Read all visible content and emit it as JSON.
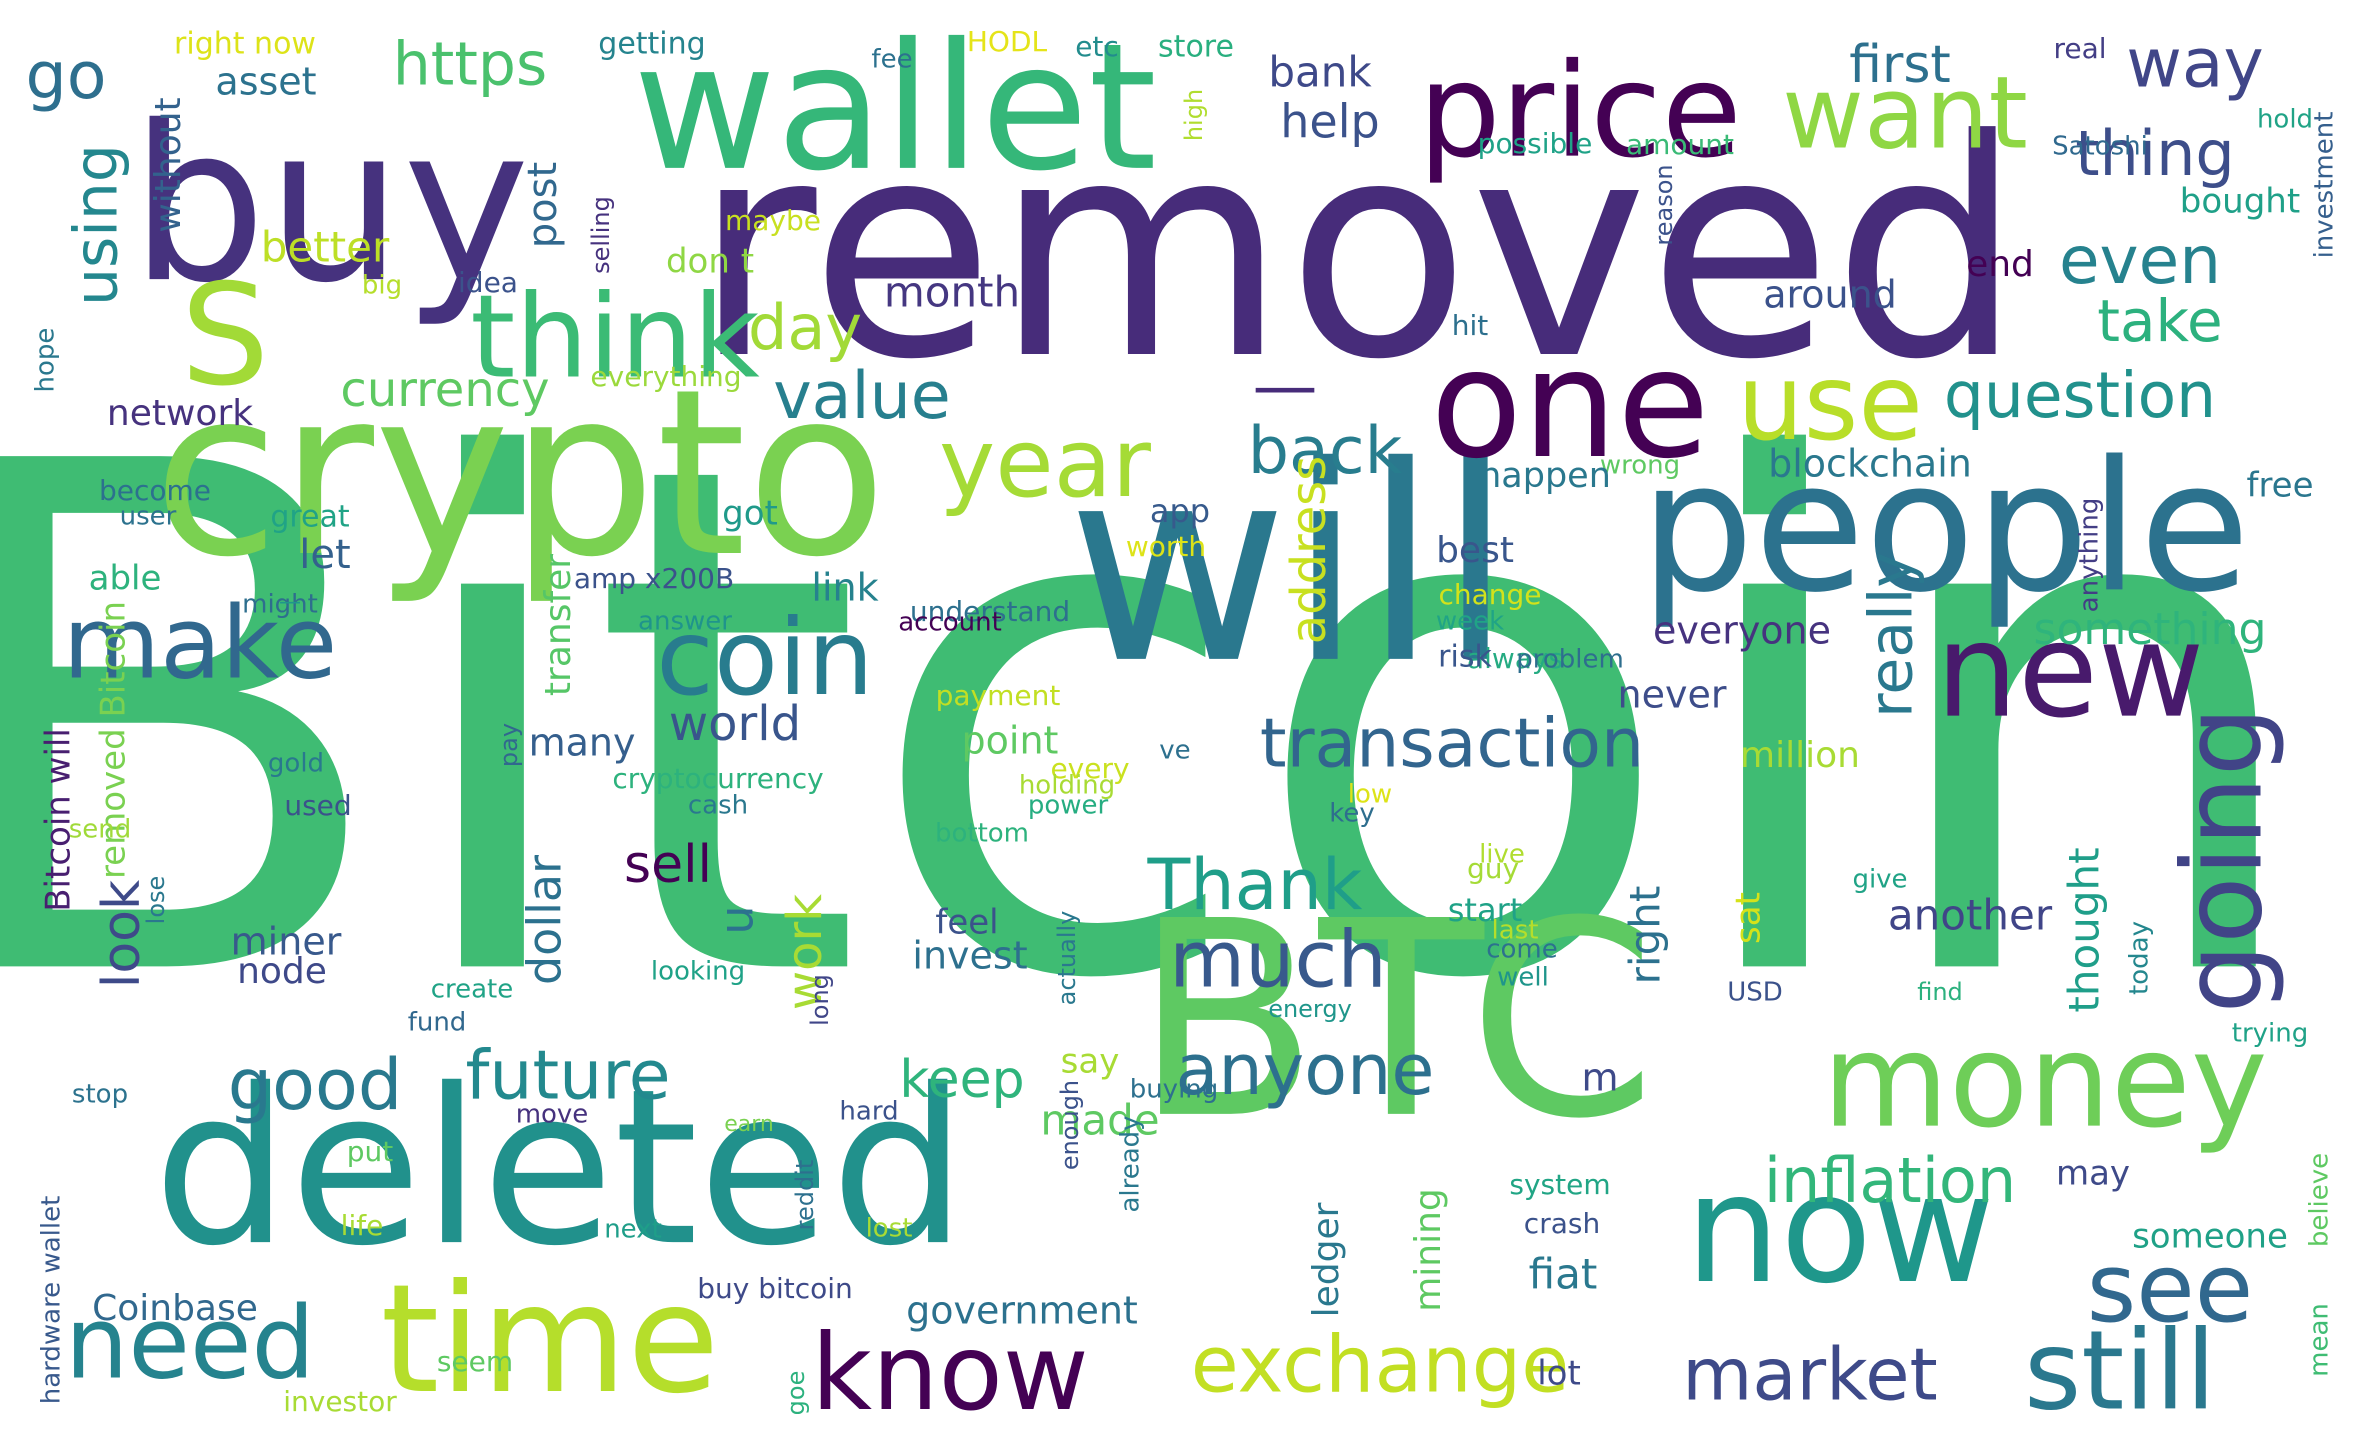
{
  "word_cloud": {
    "words": [
      {
        "text": "Bitcoin",
        "color": "#3fbc73"
      },
      {
        "text": "removed",
        "color": "#472c7a"
      },
      {
        "text": "will",
        "color": "#2a788e"
      },
      {
        "text": "crypto",
        "color": "#7ad151"
      },
      {
        "text": "BTC",
        "color": "#5ec962"
      },
      {
        "text": "deleted",
        "color": "#21918c"
      },
      {
        "text": "people",
        "color": "#2c728e"
      },
      {
        "text": "buy",
        "color": "#46327e"
      },
      {
        "text": "wallet",
        "color": "#35b779"
      },
      {
        "text": "money",
        "color": "#6ece58"
      },
      {
        "text": "now",
        "color": "#1f978b"
      },
      {
        "text": "time",
        "color": "#b5de2b"
      },
      {
        "text": "price",
        "color": "#440154"
      },
      {
        "text": "think",
        "color": "#3bbb75"
      },
      {
        "text": "one",
        "color": "#440154"
      },
      {
        "text": "new",
        "color": "#481a6c"
      },
      {
        "text": "S",
        "color": "#a2da37"
      },
      {
        "text": "coin",
        "color": "#287c8e"
      },
      {
        "text": "know",
        "color": "#440154"
      },
      {
        "text": "still",
        "color": "#2a788e"
      },
      {
        "text": "see",
        "color": "#31688e"
      },
      {
        "text": "need",
        "color": "#25838e"
      },
      {
        "text": "make",
        "color": "#31688e"
      },
      {
        "text": "going",
        "color": "#414487"
      },
      {
        "text": "year",
        "color": "#a5db36"
      },
      {
        "text": "want",
        "color": "#8fd744"
      },
      {
        "text": "use",
        "color": "#b8de29"
      },
      {
        "text": "exchange",
        "color": "#c2df23"
      },
      {
        "text": "market",
        "color": "#3e4a89"
      },
      {
        "text": "transaction",
        "color": "#32658e"
      },
      {
        "text": "anyone",
        "color": "#2d708e"
      },
      {
        "text": "much",
        "color": "#38598c"
      },
      {
        "text": "Thank",
        "color": "#1f9e89"
      },
      {
        "text": "future",
        "color": "#23898e"
      },
      {
        "text": "good",
        "color": "#29798e"
      },
      {
        "text": "inflation",
        "color": "#32b67a"
      },
      {
        "text": "question",
        "color": "#21918c"
      },
      {
        "text": "value",
        "color": "#277f8e"
      },
      {
        "text": "back",
        "color": "#287d8e"
      },
      {
        "text": "day",
        "color": "#a2da37"
      },
      {
        "text": "way",
        "color": "#404688"
      },
      {
        "text": "thing",
        "color": "#3d4e8a"
      },
      {
        "text": "even",
        "color": "#26828e"
      },
      {
        "text": "take",
        "color": "#2cb17e"
      },
      {
        "text": "first",
        "color": "#2d708e"
      },
      {
        "text": "https",
        "color": "#4ac16d"
      },
      {
        "text": "go",
        "color": "#2e6f8e"
      },
      {
        "text": "using",
        "color": "#24878e"
      },
      {
        "text": "currency",
        "color": "#5ec962"
      },
      {
        "text": "better",
        "color": "#bddf26"
      },
      {
        "text": "help",
        "color": "#3b528b"
      },
      {
        "text": "bank",
        "color": "#3e4989"
      },
      {
        "text": "month",
        "color": "#453781"
      },
      {
        "text": "asset",
        "color": "#2c728e"
      },
      {
        "text": "without",
        "color": "#33628d"
      },
      {
        "text": "post",
        "color": "#31688e"
      },
      {
        "text": "don t",
        "color": "#8fd744"
      },
      {
        "text": "idea",
        "color": "#3b528b"
      },
      {
        "text": "big",
        "color": "#b5de2b"
      },
      {
        "text": "selling",
        "color": "#46327e"
      },
      {
        "text": "getting",
        "color": "#25848e"
      },
      {
        "text": "right now",
        "color": "#dde318"
      },
      {
        "text": "fee",
        "color": "#2c718e"
      },
      {
        "text": "HODL",
        "color": "#e5e419"
      },
      {
        "text": "etc",
        "color": "#228c8d"
      },
      {
        "text": "store",
        "color": "#29af7f"
      },
      {
        "text": "high",
        "color": "#b0dd2f"
      },
      {
        "text": "maybe",
        "color": "#c8e020"
      },
      {
        "text": "possible",
        "color": "#1fa287"
      },
      {
        "text": "amount",
        "color": "#3aba76"
      },
      {
        "text": "reason",
        "color": "#3b528b"
      },
      {
        "text": "Satoshi",
        "color": "#30698e"
      },
      {
        "text": "hold",
        "color": "#20a386"
      },
      {
        "text": "investment",
        "color": "#355f8d"
      },
      {
        "text": "bought",
        "color": "#1fa088"
      },
      {
        "text": "real",
        "color": "#433e85"
      },
      {
        "text": "end",
        "color": "#440154"
      },
      {
        "text": "around",
        "color": "#3b528b"
      },
      {
        "text": "hit",
        "color": "#2d708e"
      },
      {
        "text": "free",
        "color": "#2a768e"
      },
      {
        "text": "blockchain",
        "color": "#2a788e"
      },
      {
        "text": "wrong",
        "color": "#5ec962"
      },
      {
        "text": "happen",
        "color": "#2a788e"
      },
      {
        "text": "something",
        "color": "#2fb47c"
      },
      {
        "text": "anything",
        "color": "#433e85"
      },
      {
        "text": "everyone",
        "color": "#46337f"
      },
      {
        "text": "never",
        "color": "#3d4d8a"
      },
      {
        "text": "really",
        "color": "#2a788e"
      },
      {
        "text": "million",
        "color": "#a8db34"
      },
      {
        "text": "best",
        "color": "#39568c"
      },
      {
        "text": "change",
        "color": "#d2e21b"
      },
      {
        "text": "week",
        "color": "#20a486"
      },
      {
        "text": "always",
        "color": "#25ab82"
      },
      {
        "text": "address",
        "color": "#c8e020"
      },
      {
        "text": "problem",
        "color": "#2e6e8e"
      },
      {
        "text": "risk",
        "color": "#39568c"
      },
      {
        "text": "network",
        "color": "#46327e"
      },
      {
        "text": "become",
        "color": "#2c718e"
      },
      {
        "text": "user",
        "color": "#2c728e"
      },
      {
        "text": "great",
        "color": "#20a386"
      },
      {
        "text": "might",
        "color": "#2e6e8e"
      },
      {
        "text": "hope",
        "color": "#2a788e"
      },
      {
        "text": "everything",
        "color": "#9bd93c"
      },
      {
        "text": "able",
        "color": "#2db27d"
      },
      {
        "text": "let",
        "color": "#34618d"
      },
      {
        "text": "got",
        "color": "#1f9a8a"
      },
      {
        "text": "app",
        "color": "#375a8c"
      },
      {
        "text": "amp x200B",
        "color": "#3b528b"
      },
      {
        "text": "link",
        "color": "#26828e"
      },
      {
        "text": "understand",
        "color": "#2d708e"
      },
      {
        "text": "worth",
        "color": "#dde318"
      },
      {
        "text": "account",
        "color": "#440154"
      },
      {
        "text": "answer",
        "color": "#1f948c"
      },
      {
        "text": "transfer",
        "color": "#56c667"
      },
      {
        "text": "pay",
        "color": "#31688e"
      },
      {
        "text": "Bitcoin will",
        "color": "#481f70"
      },
      {
        "text": "removed Bitcoin",
        "color": "#7ad151"
      },
      {
        "text": "look",
        "color": "#3e4a89"
      },
      {
        "text": "world",
        "color": "#39558c"
      },
      {
        "text": "many",
        "color": "#355f8d"
      },
      {
        "text": "point",
        "color": "#5ec962"
      },
      {
        "text": "payment",
        "color": "#c2df23"
      },
      {
        "text": "gold",
        "color": "#29798e"
      },
      {
        "text": "used",
        "color": "#3b528b"
      },
      {
        "text": "send",
        "color": "#a0da39"
      },
      {
        "text": "lose",
        "color": "#2a788e"
      },
      {
        "text": "cryptocurrency",
        "color": "#2db27d"
      },
      {
        "text": "cash",
        "color": "#2a788e"
      },
      {
        "text": "every",
        "color": "#cae11f"
      },
      {
        "text": "holding",
        "color": "#a8db34"
      },
      {
        "text": "power",
        "color": "#26ad81"
      },
      {
        "text": "ve",
        "color": "#2d708e"
      },
      {
        "text": "low",
        "color": "#dde318"
      },
      {
        "text": "key",
        "color": "#2e6e8e"
      },
      {
        "text": "sell",
        "color": "#440154"
      },
      {
        "text": "u",
        "color": "#2c728e"
      },
      {
        "text": "work",
        "color": "#a8db34"
      },
      {
        "text": "dollar",
        "color": "#2c718e"
      },
      {
        "text": "miner",
        "color": "#38598c"
      },
      {
        "text": "node",
        "color": "#3e4989"
      },
      {
        "text": "feel",
        "color": "#3b528b"
      },
      {
        "text": "invest",
        "color": "#2d708e"
      },
      {
        "text": "start",
        "color": "#1fa287"
      },
      {
        "text": "guy",
        "color": "#a5db36"
      },
      {
        "text": "come",
        "color": "#2c728e"
      },
      {
        "text": "well",
        "color": "#1f958b"
      },
      {
        "text": "live",
        "color": "#b0dd2f"
      },
      {
        "text": "last",
        "color": "#b5de2b"
      },
      {
        "text": "bottom",
        "color": "#2db27d"
      },
      {
        "text": "looking",
        "color": "#1fa287"
      },
      {
        "text": "create",
        "color": "#20a386"
      },
      {
        "text": "fund",
        "color": "#31688e"
      },
      {
        "text": "long",
        "color": "#404688"
      },
      {
        "text": "actually",
        "color": "#2a788e"
      },
      {
        "text": "energy",
        "color": "#1f968b"
      },
      {
        "text": "USD",
        "color": "#3b528b"
      },
      {
        "text": "find",
        "color": "#2cb17e"
      },
      {
        "text": "give",
        "color": "#20a386"
      },
      {
        "text": "trying",
        "color": "#1fa287"
      },
      {
        "text": "sat",
        "color": "#d5e21a"
      },
      {
        "text": "right",
        "color": "#2c718e"
      },
      {
        "text": "thought",
        "color": "#1f9e89"
      },
      {
        "text": "today",
        "color": "#24878e"
      },
      {
        "text": "another",
        "color": "#404588"
      },
      {
        "text": "keep",
        "color": "#2fb47c"
      },
      {
        "text": "say",
        "color": "#a8db34"
      },
      {
        "text": "made",
        "color": "#5ec962"
      },
      {
        "text": "m",
        "color": "#3e4a89"
      },
      {
        "text": "buying",
        "color": "#2d708e"
      },
      {
        "text": "hard",
        "color": "#3b528b"
      },
      {
        "text": "enough",
        "color": "#3b528b"
      },
      {
        "text": "already",
        "color": "#2a788e"
      },
      {
        "text": "earn",
        "color": "#7ad151"
      },
      {
        "text": "move",
        "color": "#46327e"
      },
      {
        "text": "stop",
        "color": "#2c728e"
      },
      {
        "text": "put",
        "color": "#5ec962"
      },
      {
        "text": "life",
        "color": "#a8db34"
      },
      {
        "text": "next",
        "color": "#1f9e89"
      },
      {
        "text": "lost",
        "color": "#a8db34"
      },
      {
        "text": "reddit",
        "color": "#2d708e"
      },
      {
        "text": "buy bitcoin",
        "color": "#3e4a89"
      },
      {
        "text": "Coinbase",
        "color": "#31688e"
      },
      {
        "text": "hardware wallet",
        "color": "#38598c"
      },
      {
        "text": "seem",
        "color": "#5ec962"
      },
      {
        "text": "investor",
        "color": "#a8db34"
      },
      {
        "text": "goe",
        "color": "#2cb17e"
      },
      {
        "text": "government",
        "color": "#2c718e"
      },
      {
        "text": "fiat",
        "color": "#2a788e"
      },
      {
        "text": "lot",
        "color": "#3e4a89"
      },
      {
        "text": "ledger",
        "color": "#2a788e"
      },
      {
        "text": "mining",
        "color": "#5ec962"
      },
      {
        "text": "system",
        "color": "#21a585"
      },
      {
        "text": "crash",
        "color": "#3b528b"
      },
      {
        "text": "may",
        "color": "#3e4a89"
      },
      {
        "text": "someone",
        "color": "#1fa187"
      },
      {
        "text": "believe",
        "color": "#5ec962"
      },
      {
        "text": "mean",
        "color": "#3fbc73"
      },
      {
        "text": "—",
        "color": "#1f978b"
      },
      {
        "text": "—",
        "color": "#472c7a"
      }
    ]
  }
}
